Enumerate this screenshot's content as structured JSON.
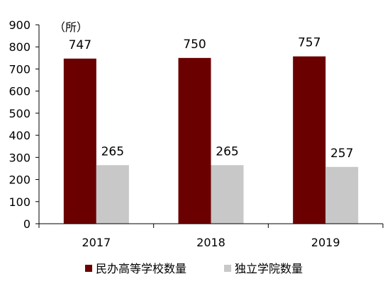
{
  "chart_data": {
    "type": "bar",
    "unit_label": "（所）",
    "categories": [
      "2017",
      "2018",
      "2019"
    ],
    "series": [
      {
        "name": "民办高等学校数量",
        "color": "#6b0000",
        "values": [
          747,
          750,
          757
        ],
        "labels": [
          "747",
          "750",
          "757"
        ]
      },
      {
        "name": "独立学院数量",
        "color": "#c8c8c8",
        "values": [
          265,
          265,
          257
        ],
        "labels": [
          "265",
          "265",
          "257"
        ]
      }
    ],
    "ylim": [
      0,
      900
    ],
    "yticks": [
      0,
      100,
      200,
      300,
      400,
      500,
      600,
      700,
      800,
      900
    ],
    "ytick_labels": [
      "0",
      "100",
      "200",
      "300",
      "400",
      "500",
      "600",
      "700",
      "800",
      "900"
    ],
    "grid": false,
    "legend_position": "bottom",
    "xlabel": "",
    "ylabel": ""
  }
}
